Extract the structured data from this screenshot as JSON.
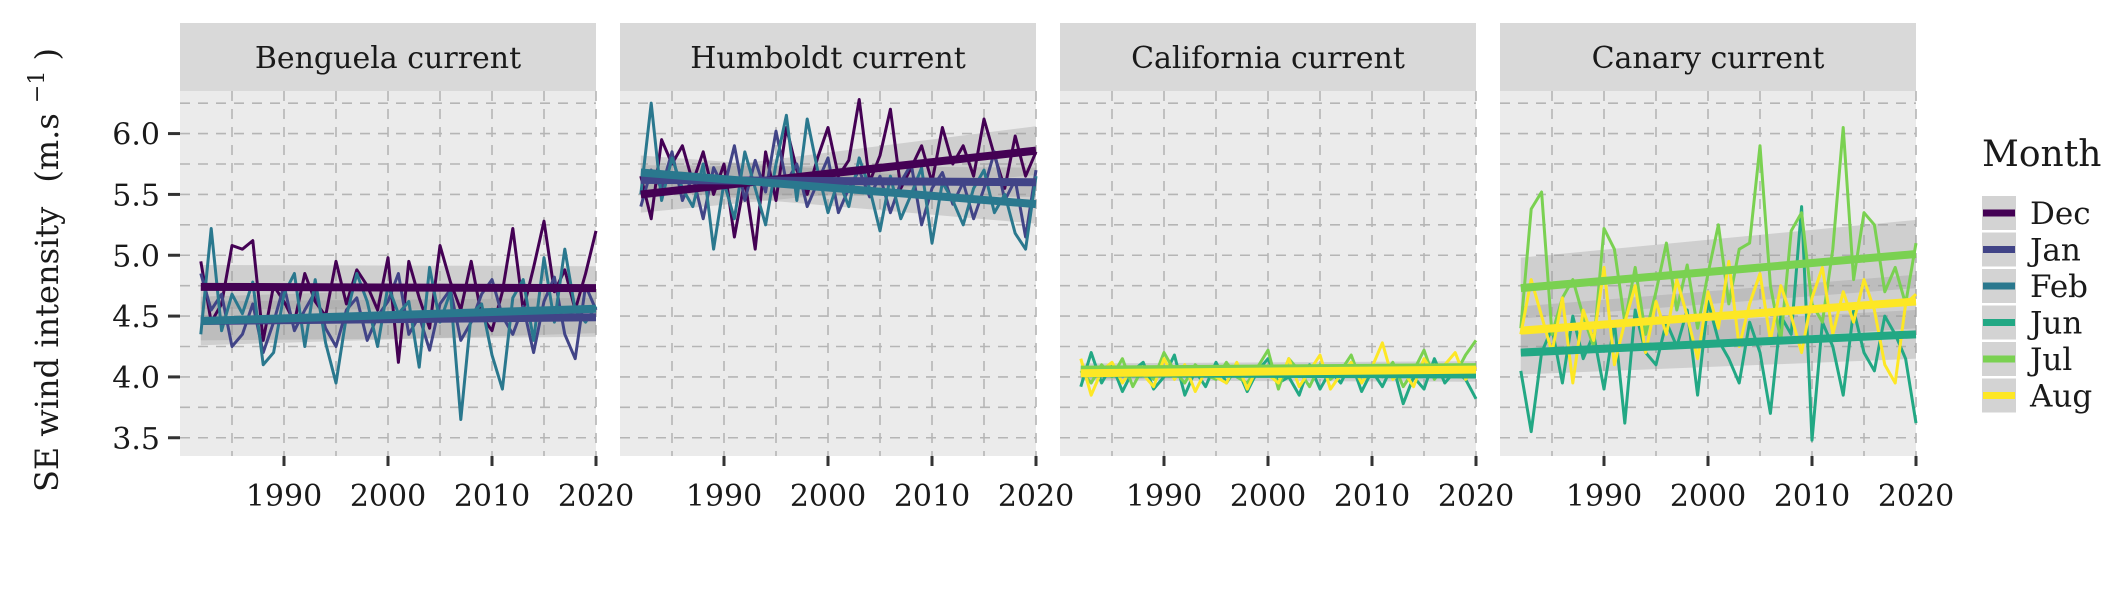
{
  "chart_data": {
    "type": "line",
    "ylabel": "SE wind intensity",
    "ylabel_unit_base": "(m.s",
    "ylabel_unit_exp": "−1",
    "ylabel_unit_close": ")",
    "xlim": [
      1980,
      2020
    ],
    "ylim": [
      3.35,
      6.35
    ],
    "x_ticks": [
      1990,
      2000,
      2010,
      2020
    ],
    "y_ticks": [
      3.5,
      4.0,
      4.5,
      5.0,
      5.5,
      6.0
    ],
    "y_tick_labels": [
      "3.5",
      "4.0",
      "4.5",
      "5.0",
      "5.5",
      "6.0"
    ],
    "grid": true,
    "legend": {
      "title": "Month",
      "placement": "right",
      "entries": [
        {
          "name": "Dec",
          "color": "#440154"
        },
        {
          "name": "Jan",
          "color": "#414487"
        },
        {
          "name": "Feb",
          "color": "#2a788e"
        },
        {
          "name": "Jun",
          "color": "#22a884"
        },
        {
          "name": "Jul",
          "color": "#7ad151"
        },
        {
          "name": "Aug",
          "color": "#fde725"
        }
      ]
    },
    "panels": [
      {
        "title": "Benguela current",
        "series": [
          {
            "name": "Dec",
            "color": "#440154",
            "x_start": 1982,
            "values": [
              4.95,
              4.45,
              4.6,
              5.08,
              5.05,
              5.12,
              4.3,
              4.75,
              4.62,
              4.45,
              4.85,
              4.62,
              4.5,
              4.95,
              4.6,
              4.88,
              4.75,
              4.55,
              4.98,
              4.12,
              4.95,
              4.65,
              4.4,
              5.08,
              4.78,
              4.55,
              4.95,
              4.5,
              4.38,
              4.7,
              5.22,
              4.55,
              4.9,
              5.28,
              4.7,
              4.88,
              4.55,
              4.85,
              5.2
            ],
            "trend": [
              4.74,
              4.73
            ],
            "band": [
              0.18,
              0.18
            ]
          },
          {
            "name": "Jan",
            "color": "#414487",
            "x_start": 1982,
            "values": [
              4.85,
              4.55,
              4.68,
              4.25,
              4.35,
              4.6,
              4.2,
              4.45,
              4.75,
              4.38,
              4.55,
              4.7,
              4.4,
              4.25,
              4.55,
              4.65,
              4.3,
              4.5,
              4.62,
              4.85,
              4.35,
              4.5,
              4.22,
              4.6,
              4.72,
              4.3,
              4.45,
              4.68,
              4.8,
              4.5,
              4.35,
              4.58,
              4.2,
              4.62,
              4.82,
              4.35,
              4.15,
              4.75,
              4.55
            ],
            "trend": [
              4.46,
              4.49
            ],
            "band": [
              0.16,
              0.16
            ]
          },
          {
            "name": "Feb",
            "color": "#2a788e",
            "x_start": 1982,
            "values": [
              4.35,
              5.22,
              4.38,
              4.68,
              4.52,
              4.78,
              4.1,
              4.2,
              4.68,
              4.85,
              4.25,
              4.8,
              4.28,
              3.95,
              4.5,
              4.85,
              4.62,
              4.25,
              4.75,
              4.52,
              4.62,
              4.08,
              4.9,
              4.45,
              4.7,
              3.65,
              4.52,
              4.6,
              4.18,
              3.9,
              4.65,
              4.8,
              4.3,
              4.98,
              4.45,
              5.05,
              4.55,
              4.45,
              4.58
            ],
            "trend": [
              4.46,
              4.56
            ],
            "band": [
              0.2,
              0.2
            ]
          }
        ]
      },
      {
        "title": "Humboldt current",
        "series": [
          {
            "name": "Dec",
            "color": "#440154",
            "x_start": 1982,
            "values": [
              5.65,
              5.3,
              5.95,
              5.75,
              5.9,
              5.6,
              5.85,
              5.5,
              5.75,
              5.15,
              5.62,
              5.05,
              5.85,
              5.45,
              6.05,
              5.7,
              5.5,
              5.8,
              6.05,
              5.65,
              5.78,
              6.28,
              5.6,
              5.82,
              6.2,
              5.55,
              5.72,
              5.9,
              5.6,
              6.05,
              5.75,
              5.9,
              5.65,
              6.12,
              5.82,
              5.55,
              5.98,
              5.65,
              5.85
            ],
            "trend": [
              5.5,
              5.86
            ],
            "band": [
              0.15,
              0.2
            ]
          },
          {
            "name": "Jan",
            "color": "#414487",
            "x_start": 1982,
            "values": [
              5.4,
              5.7,
              5.55,
              5.85,
              5.45,
              5.65,
              5.3,
              5.72,
              5.55,
              5.9,
              5.45,
              5.78,
              5.52,
              6.02,
              5.6,
              5.75,
              5.4,
              5.6,
              5.8,
              5.35,
              5.55,
              5.7,
              5.48,
              5.65,
              5.35,
              5.6,
              5.75,
              5.25,
              5.55,
              5.68,
              5.42,
              5.6,
              5.3,
              5.55,
              5.85,
              5.45,
              5.62,
              5.15,
              5.7
            ],
            "trend": [
              5.62,
              5.6
            ],
            "band": [
              0.12,
              0.12
            ]
          },
          {
            "name": "Feb",
            "color": "#2a788e",
            "x_start": 1982,
            "values": [
              5.5,
              6.25,
              5.45,
              5.8,
              5.55,
              5.4,
              5.75,
              5.05,
              5.6,
              5.3,
              5.85,
              5.55,
              5.25,
              5.75,
              6.15,
              5.45,
              6.12,
              5.7,
              5.35,
              5.62,
              5.4,
              5.8,
              5.55,
              5.2,
              5.65,
              5.3,
              5.5,
              5.72,
              5.1,
              5.6,
              5.45,
              5.25,
              5.55,
              5.7,
              5.35,
              5.5,
              5.18,
              5.05,
              5.65
            ],
            "trend": [
              5.68,
              5.42
            ],
            "band": [
              0.14,
              0.16
            ]
          }
        ]
      },
      {
        "title": "California current",
        "series": [
          {
            "name": "Jun",
            "color": "#22a884",
            "x_start": 1982,
            "values": [
              3.92,
              4.2,
              3.95,
              4.1,
              3.88,
              4.05,
              4.12,
              3.9,
              4.0,
              4.18,
              3.85,
              4.05,
              3.92,
              4.12,
              3.95,
              4.08,
              3.88,
              4.05,
              4.15,
              3.95,
              4.0,
              3.85,
              4.1,
              3.9,
              4.05,
              3.95,
              4.12,
              3.88,
              4.05,
              3.92,
              4.1,
              3.78,
              4.0,
              3.9,
              4.15,
              3.95,
              4.05,
              3.98,
              3.82
            ],
            "trend": [
              4.03,
              4.02
            ],
            "band": [
              0.06,
              0.06
            ]
          },
          {
            "name": "Jul",
            "color": "#7ad151",
            "x_start": 1982,
            "values": [
              4.05,
              3.95,
              4.1,
              4.0,
              4.15,
              3.92,
              4.08,
              3.98,
              4.2,
              4.05,
              3.95,
              4.1,
              4.02,
              3.98,
              4.12,
              4.0,
              3.95,
              4.08,
              4.22,
              3.9,
              4.15,
              4.05,
              3.92,
              4.1,
              3.98,
              4.05,
              4.18,
              3.95,
              4.08,
              4.0,
              4.12,
              3.92,
              4.05,
              4.22,
              3.98,
              4.1,
              4.02,
              4.18,
              4.3
            ],
            "trend": [
              4.06,
              4.08
            ],
            "band": [
              0.05,
              0.05
            ]
          },
          {
            "name": "Aug",
            "color": "#fde725",
            "x_start": 1982,
            "values": [
              4.15,
              3.85,
              4.05,
              4.12,
              3.95,
              4.08,
              4.02,
              3.92,
              4.15,
              3.98,
              4.1,
              3.88,
              4.05,
              4.0,
              3.95,
              4.12,
              3.9,
              4.08,
              4.02,
              3.95,
              4.15,
              3.92,
              4.05,
              4.18,
              3.9,
              4.02,
              4.12,
              3.95,
              4.08,
              4.28,
              3.98,
              4.05,
              3.92,
              4.15,
              4.02,
              4.1,
              4.2,
              3.98,
              4.08
            ],
            "trend": [
              4.03,
              4.06
            ],
            "band": [
              0.05,
              0.05
            ]
          }
        ]
      },
      {
        "title": "Canary current",
        "series": [
          {
            "name": "Jun",
            "color": "#22a884",
            "x_start": 1982,
            "values": [
              4.05,
              3.55,
              4.2,
              4.4,
              3.95,
              4.5,
              4.15,
              4.35,
              3.9,
              4.45,
              3.62,
              4.55,
              4.2,
              4.1,
              4.45,
              4.25,
              4.55,
              3.85,
              4.62,
              4.3,
              4.15,
              3.95,
              4.45,
              4.2,
              3.7,
              4.5,
              4.35,
              5.4,
              3.48,
              4.45,
              4.25,
              3.85,
              4.55,
              4.2,
              4.05,
              4.5,
              4.35,
              4.15,
              3.62
            ],
            "trend": [
              4.2,
              4.35
            ],
            "band": [
              0.18,
              0.2
            ]
          },
          {
            "name": "Jul",
            "color": "#7ad151",
            "x_start": 1982,
            "values": [
              4.4,
              5.38,
              5.52,
              4.35,
              4.65,
              4.8,
              4.5,
              4.25,
              5.22,
              5.05,
              4.45,
              4.9,
              4.35,
              4.7,
              5.1,
              4.55,
              4.92,
              4.4,
              4.85,
              5.25,
              4.6,
              5.05,
              5.1,
              5.9,
              4.75,
              4.3,
              5.2,
              5.35,
              4.6,
              4.45,
              5.05,
              6.05,
              4.8,
              5.35,
              5.25,
              4.7,
              4.9,
              4.6,
              5.1
            ],
            "trend": [
              4.73,
              5.01
            ],
            "band": [
              0.25,
              0.28
            ]
          },
          {
            "name": "Aug",
            "color": "#fde725",
            "x_start": 1982,
            "values": [
              4.35,
              4.8,
              4.5,
              4.2,
              4.65,
              3.95,
              4.55,
              4.3,
              4.9,
              4.1,
              4.45,
              4.75,
              4.2,
              4.62,
              4.35,
              4.8,
              4.5,
              4.15,
              4.7,
              4.4,
              4.95,
              4.25,
              4.6,
              4.85,
              4.3,
              4.75,
              4.5,
              4.2,
              4.65,
              4.9,
              4.35,
              4.7,
              4.45,
              4.8,
              4.55,
              4.1,
              3.95,
              4.6,
              4.68
            ],
            "trend": [
              4.38,
              4.62
            ],
            "band": [
              0.2,
              0.22
            ]
          }
        ]
      }
    ]
  }
}
